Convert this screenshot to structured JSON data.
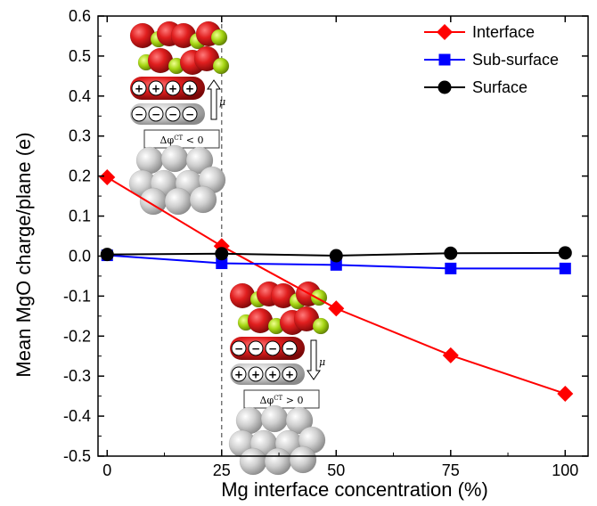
{
  "chart_data": {
    "type": "line",
    "xlabel": "Mg interface concentration (%)",
    "ylabel": "Mean MgO charge/plane (e)",
    "x": [
      0,
      25,
      50,
      75,
      100
    ],
    "xlim": [
      -2,
      105
    ],
    "ylim": [
      -0.5,
      0.6
    ],
    "x_ticks": [
      "0",
      "25",
      "50",
      "75",
      "100"
    ],
    "y_ticks": [
      "-0.5",
      "-0.4",
      "-0.3",
      "-0.2",
      "-0.1",
      "0.0",
      "0.1",
      "0.2",
      "0.3",
      "0.4",
      "0.5",
      "0.6"
    ],
    "series": [
      {
        "name": "Interface",
        "color": "#ff0000",
        "marker": "diamond",
        "values": [
          0.197,
          0.025,
          -0.131,
          -0.248,
          -0.344
        ]
      },
      {
        "name": "Sub-surface",
        "color": "#0000ff",
        "marker": "square",
        "values": [
          0.002,
          -0.018,
          -0.022,
          -0.031,
          -0.031
        ]
      },
      {
        "name": "Surface",
        "color": "#000000",
        "marker": "circle",
        "values": [
          0.004,
          0.006,
          0.001,
          0.007,
          0.008
        ]
      }
    ],
    "reference_line": {
      "x": 25,
      "style": "dashed",
      "color": "#555555"
    },
    "legend": {
      "position": "top-right"
    },
    "grid": false
  },
  "insets": [
    {
      "name": "upper",
      "label": "Δφ^CT < 0",
      "label_main": "Δφ",
      "label_sup": "CT",
      "label_rest": " < 0",
      "charges_top": [
        "+",
        "+",
        "+",
        "+"
      ],
      "charges_bottom": [
        "−",
        "−",
        "−",
        "−"
      ],
      "arrow": "up",
      "arrow_label": "μ"
    },
    {
      "name": "lower",
      "label": "Δφ^CT > 0",
      "label_main": "Δφ",
      "label_sup": "CT",
      "label_rest": " > 0",
      "charges_top": [
        "−",
        "−",
        "−",
        "−"
      ],
      "charges_bottom": [
        "+",
        "+",
        "+",
        "+"
      ],
      "arrow": "down",
      "arrow_label": "μ"
    }
  ],
  "colors": {
    "oxygen": "#cc1a1a",
    "magnesium": "#a8d818",
    "metal": "#c8c8c8"
  }
}
